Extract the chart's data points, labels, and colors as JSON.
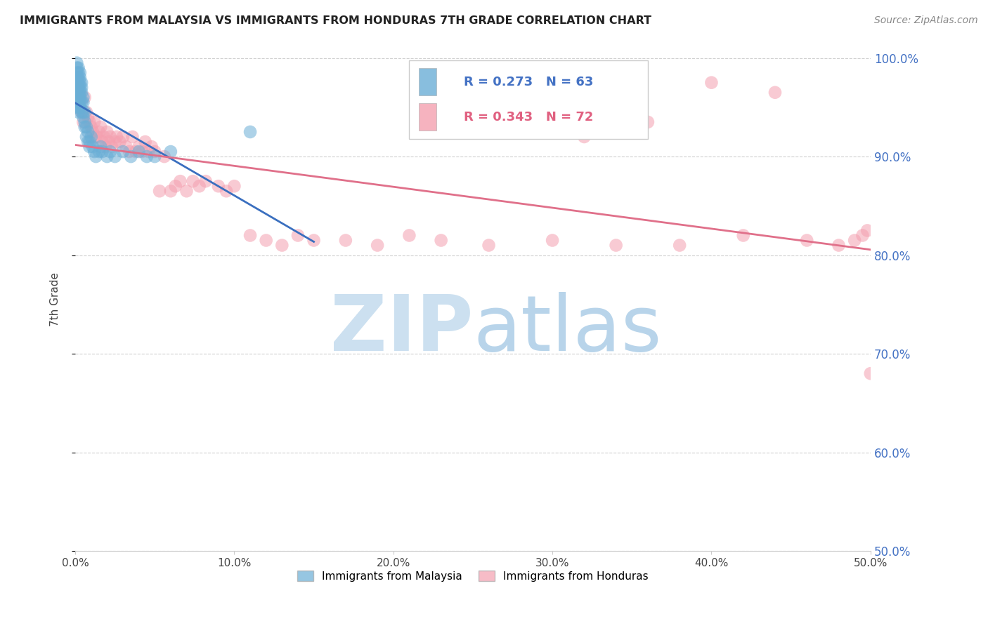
{
  "title": "IMMIGRANTS FROM MALAYSIA VS IMMIGRANTS FROM HONDURAS 7TH GRADE CORRELATION CHART",
  "source": "Source: ZipAtlas.com",
  "ylabel": "7th Grade",
  "xlim": [
    0.0,
    0.5
  ],
  "ylim": [
    0.5,
    1.01
  ],
  "yticks": [
    0.5,
    0.6,
    0.7,
    0.8,
    0.9,
    1.0
  ],
  "ytick_labels": [
    "50.0%",
    "60.0%",
    "70.0%",
    "80.0%",
    "90.0%",
    "100.0%"
  ],
  "xticks": [
    0.0,
    0.1,
    0.2,
    0.3,
    0.4,
    0.5
  ],
  "xtick_labels": [
    "0.0%",
    "10.0%",
    "20.0%",
    "30.0%",
    "40.0%",
    "50.0%"
  ],
  "malaysia_R": 0.273,
  "malaysia_N": 63,
  "honduras_R": 0.343,
  "honduras_N": 72,
  "malaysia_color": "#6aaed6",
  "honduras_color": "#f4a0b0",
  "malaysia_line_color": "#3a6fbf",
  "honduras_line_color": "#e0708a",
  "watermark_zip_color": "#cce0f0",
  "watermark_atlas_color": "#b8d4ea",
  "legend_label_malaysia": "Immigrants from Malaysia",
  "legend_label_honduras": "Immigrants from Honduras",
  "malaysia_x": [
    0.001,
    0.001,
    0.001,
    0.001,
    0.001,
    0.001,
    0.001,
    0.001,
    0.001,
    0.001,
    0.002,
    0.002,
    0.002,
    0.002,
    0.002,
    0.002,
    0.002,
    0.002,
    0.002,
    0.002,
    0.003,
    0.003,
    0.003,
    0.003,
    0.003,
    0.003,
    0.003,
    0.003,
    0.004,
    0.004,
    0.004,
    0.004,
    0.004,
    0.005,
    0.005,
    0.005,
    0.005,
    0.006,
    0.006,
    0.006,
    0.007,
    0.007,
    0.008,
    0.008,
    0.009,
    0.009,
    0.01,
    0.011,
    0.012,
    0.013,
    0.015,
    0.016,
    0.017,
    0.02,
    0.022,
    0.025,
    0.03,
    0.035,
    0.04,
    0.045,
    0.05,
    0.06,
    0.11
  ],
  "malaysia_y": [
    0.995,
    0.99,
    0.985,
    0.98,
    0.975,
    0.97,
    0.965,
    0.96,
    0.955,
    0.95,
    0.99,
    0.985,
    0.98,
    0.975,
    0.97,
    0.965,
    0.96,
    0.955,
    0.95,
    0.945,
    0.985,
    0.98,
    0.975,
    0.97,
    0.965,
    0.96,
    0.955,
    0.95,
    0.975,
    0.97,
    0.965,
    0.955,
    0.945,
    0.96,
    0.955,
    0.945,
    0.94,
    0.945,
    0.935,
    0.93,
    0.93,
    0.92,
    0.925,
    0.915,
    0.915,
    0.91,
    0.92,
    0.91,
    0.905,
    0.9,
    0.905,
    0.91,
    0.905,
    0.9,
    0.905,
    0.9,
    0.905,
    0.9,
    0.905,
    0.9,
    0.9,
    0.905,
    0.925
  ],
  "honduras_x": [
    0.002,
    0.003,
    0.004,
    0.005,
    0.006,
    0.007,
    0.008,
    0.009,
    0.01,
    0.011,
    0.012,
    0.013,
    0.014,
    0.015,
    0.016,
    0.017,
    0.018,
    0.019,
    0.02,
    0.021,
    0.022,
    0.023,
    0.025,
    0.026,
    0.028,
    0.03,
    0.032,
    0.034,
    0.036,
    0.038,
    0.04,
    0.042,
    0.044,
    0.046,
    0.048,
    0.05,
    0.053,
    0.056,
    0.06,
    0.063,
    0.066,
    0.07,
    0.074,
    0.078,
    0.082,
    0.09,
    0.095,
    0.1,
    0.11,
    0.12,
    0.13,
    0.14,
    0.15,
    0.17,
    0.19,
    0.21,
    0.23,
    0.26,
    0.3,
    0.34,
    0.38,
    0.42,
    0.46,
    0.48,
    0.49,
    0.495,
    0.498,
    0.5,
    0.32,
    0.36,
    0.4,
    0.44
  ],
  "honduras_y": [
    0.97,
    0.96,
    0.945,
    0.935,
    0.96,
    0.945,
    0.94,
    0.935,
    0.93,
    0.925,
    0.935,
    0.92,
    0.92,
    0.925,
    0.93,
    0.915,
    0.92,
    0.91,
    0.925,
    0.915,
    0.92,
    0.91,
    0.915,
    0.92,
    0.915,
    0.92,
    0.91,
    0.905,
    0.92,
    0.905,
    0.91,
    0.905,
    0.915,
    0.905,
    0.91,
    0.905,
    0.865,
    0.9,
    0.865,
    0.87,
    0.875,
    0.865,
    0.875,
    0.87,
    0.875,
    0.87,
    0.865,
    0.87,
    0.82,
    0.815,
    0.81,
    0.82,
    0.815,
    0.815,
    0.81,
    0.82,
    0.815,
    0.81,
    0.815,
    0.81,
    0.81,
    0.82,
    0.815,
    0.81,
    0.815,
    0.82,
    0.825,
    0.68,
    0.92,
    0.935,
    0.975,
    0.965
  ]
}
